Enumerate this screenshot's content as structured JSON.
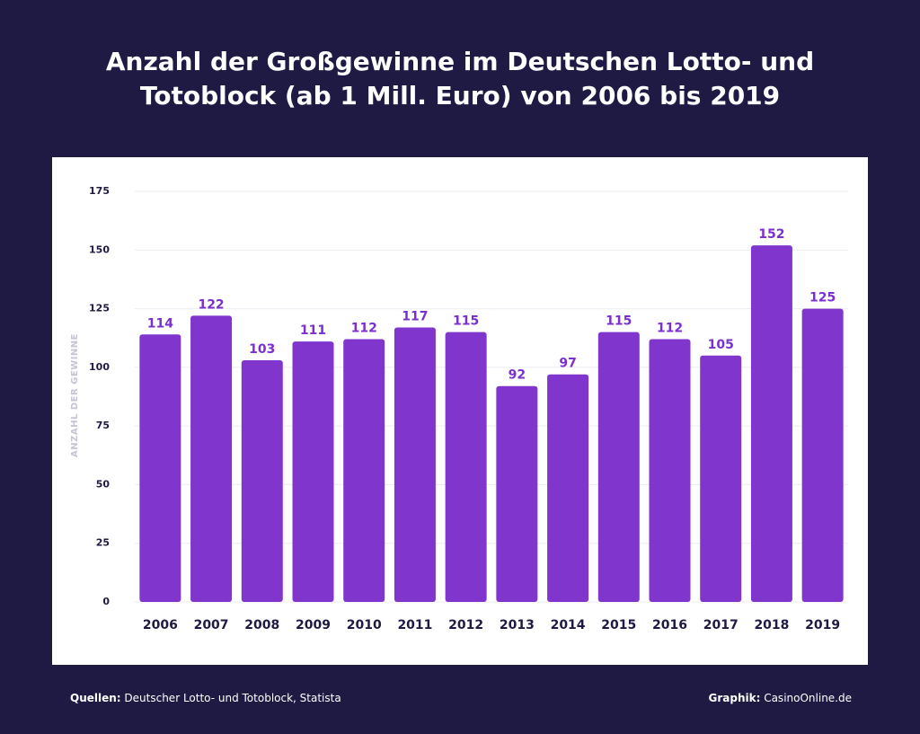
{
  "chart_data": {
    "type": "bar",
    "title": "Anzahl der Großgewinne im Deutschen Lotto- und Totoblock (ab 1 Mill. Euro) von 2006 bis 2019",
    "y_label": "ANZAHL DER GEWINNE",
    "categories": [
      "2006",
      "2007",
      "2008",
      "2009",
      "2010",
      "2011",
      "2012",
      "2013",
      "2014",
      "2015",
      "2016",
      "2017",
      "2018",
      "2019"
    ],
    "values": [
      114,
      122,
      103,
      111,
      112,
      117,
      115,
      92,
      97,
      115,
      112,
      105,
      152,
      125
    ],
    "color": "#8036cc",
    "label_color": "#7b2fcf",
    "ylim": [
      0,
      175
    ],
    "yticks": [
      0,
      25,
      50,
      75,
      100,
      125,
      150,
      175
    ],
    "grid": true,
    "source_label": "Quellen:",
    "source": "Deutscher Lotto- und Totoblock, Statista",
    "credit_label": "Graphik:",
    "credit": "CasinoOnline.de"
  }
}
